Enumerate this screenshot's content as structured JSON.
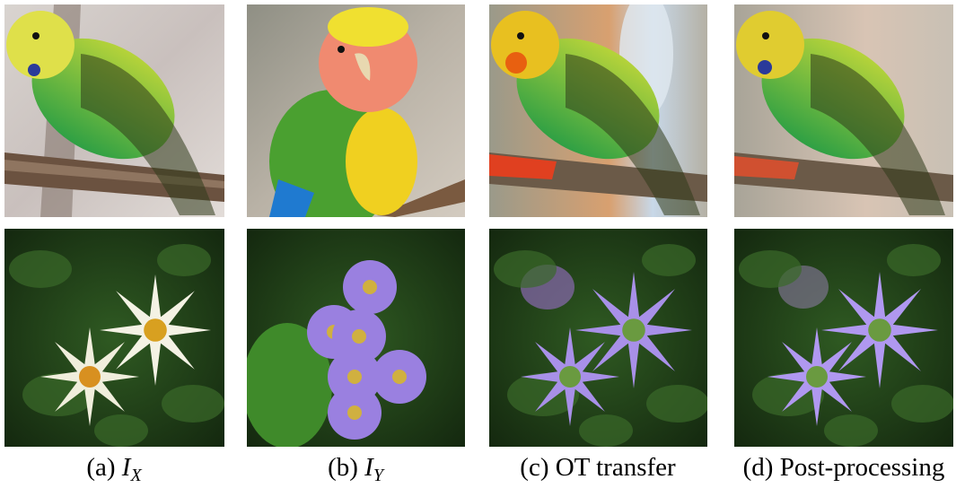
{
  "captions": [
    {
      "label": "(a)",
      "symbol": "I",
      "subscript": "X"
    },
    {
      "label": "(b)",
      "symbol": "I",
      "subscript": "Y"
    },
    {
      "label": "(c)",
      "text": "OT transfer"
    },
    {
      "label": "(d)",
      "text": "Post-processing"
    }
  ]
}
